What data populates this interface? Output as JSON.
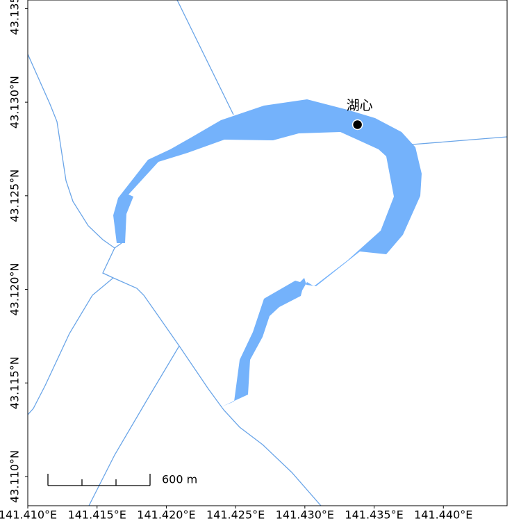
{
  "map": {
    "xlim": [
      141.41,
      141.4446
    ],
    "ylim": [
      43.10844,
      43.13546
    ],
    "xticks": [
      {
        "value": 141.41,
        "label": "141.410°E"
      },
      {
        "value": 141.415,
        "label": "141.415°E"
      },
      {
        "value": 141.42,
        "label": "141.420°E"
      },
      {
        "value": 141.425,
        "label": "141.425°E"
      },
      {
        "value": 141.43,
        "label": "141.430°E"
      },
      {
        "value": 141.435,
        "label": "141.435°E"
      },
      {
        "value": 141.44,
        "label": "141.440°E"
      }
    ],
    "yticks": [
      {
        "value": 43.11,
        "label": "43.110°N"
      },
      {
        "value": 43.115,
        "label": "43.115°N"
      },
      {
        "value": 43.12,
        "label": "43.120°N"
      },
      {
        "value": 43.125,
        "label": "43.125°N"
      },
      {
        "value": 43.13,
        "label": "43.130°N"
      },
      {
        "value": 43.135,
        "label": "43.135°N"
      }
    ],
    "points": [
      {
        "label": "湖心",
        "lon": 141.4338,
        "lat": 43.1288
      }
    ],
    "scale_bar": {
      "label": "600 m"
    }
  }
}
